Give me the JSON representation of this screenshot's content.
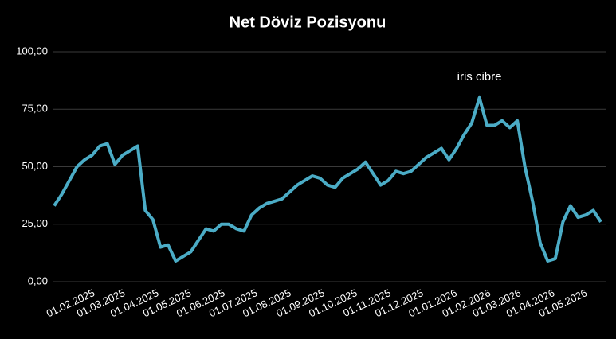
{
  "chart_data": {
    "type": "line",
    "title": "Net Döviz Pozisyonu",
    "annotation": "iris cibre",
    "x": [
      "26.12.2024",
      "02.01.2025",
      "09.01.2025",
      "16.01.2025",
      "23.01.2025",
      "30.01.2025",
      "06.02.2025",
      "13.02.2025",
      "20.02.2025",
      "27.02.2025",
      "06.03.2025",
      "13.03.2025",
      "20.03.2025",
      "27.03.2025",
      "03.04.2025",
      "10.04.2025",
      "17.04.2025",
      "24.04.2025",
      "01.05.2025",
      "08.05.2025",
      "15.05.2025",
      "22.05.2025",
      "29.05.2025",
      "05.06.2025",
      "12.06.2025",
      "19.06.2025",
      "26.06.2025",
      "03.07.2025",
      "10.07.2025",
      "17.07.2025",
      "24.07.2025",
      "31.07.2025",
      "07.08.2025",
      "14.08.2025",
      "21.08.2025",
      "28.08.2025",
      "04.09.2025",
      "11.09.2025",
      "18.09.2025",
      "25.09.2025",
      "02.10.2025",
      "09.10.2025",
      "16.10.2025",
      "23.10.2025",
      "30.10.2025",
      "06.11.2025",
      "13.11.2025",
      "20.11.2025",
      "27.11.2025",
      "04.12.2025",
      "11.12.2025",
      "18.12.2025",
      "25.12.2025",
      "01.01.2026",
      "08.01.2026",
      "15.01.2026",
      "22.01.2026",
      "29.01.2026",
      "05.02.2026",
      "12.02.2026",
      "19.02.2026",
      "26.02.2026",
      "05.03.2026",
      "12.03.2026",
      "19.03.2026",
      "26.03.2026",
      "02.04.2026",
      "09.04.2026",
      "16.04.2026",
      "23.04.2026",
      "30.04.2026",
      "07.05.2026",
      "14.05.2026"
    ],
    "series": [
      {
        "name": "Net Döviz Pozisyonu",
        "color": "#4bacc6",
        "values": [
          33,
          38,
          44,
          50,
          53,
          55,
          59,
          60,
          51,
          55,
          57,
          59,
          31,
          27,
          15,
          16,
          9,
          11,
          13,
          18,
          23,
          22,
          25,
          25,
          23,
          22,
          29,
          32,
          34,
          35,
          36,
          39,
          42,
          44,
          46,
          45,
          42,
          41,
          45,
          47,
          49,
          52,
          47,
          42,
          44,
          48,
          47,
          48,
          51,
          54,
          56,
          58,
          53,
          58,
          64,
          69,
          80,
          68,
          68,
          70,
          67,
          70,
          50,
          35,
          17,
          9,
          10,
          26,
          33,
          28,
          29,
          31,
          26
        ]
      }
    ],
    "xlim": [
      "26.12.2024",
      "14.05.2026"
    ],
    "xticks": [
      "01.02.2025",
      "01.03.2025",
      "01.04.2025",
      "01.05.2025",
      "01.06.2025",
      "01.07.2025",
      "01.08.2025",
      "01.09.2025",
      "01.10.2025",
      "01.11.2025",
      "01.12.2025",
      "01.01.2026",
      "01.02.2026",
      "01.03.2026",
      "01.04.2026",
      "01.05.2026"
    ],
    "ylim": [
      0,
      100
    ],
    "yticks": [
      {
        "value": 0,
        "label": "0,00"
      },
      {
        "value": 25,
        "label": "25,00"
      },
      {
        "value": 50,
        "label": "50,00"
      },
      {
        "value": 75,
        "label": "75,00"
      },
      {
        "value": 100,
        "label": "100,00"
      }
    ],
    "grid": true
  }
}
